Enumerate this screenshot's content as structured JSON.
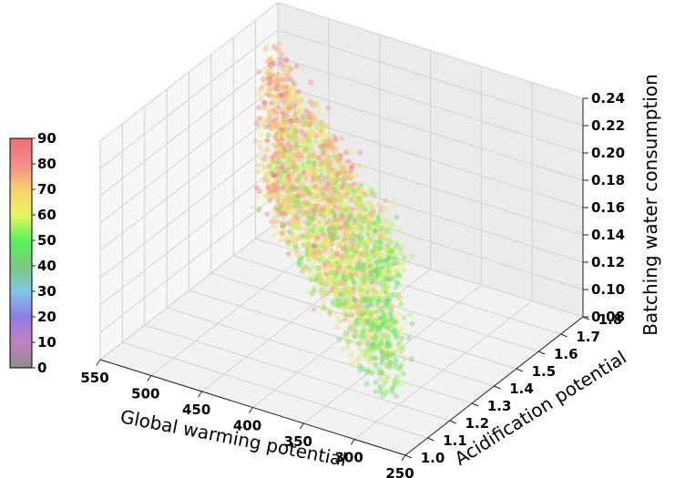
{
  "chart_data": {
    "type": "scatter",
    "projection": "3d",
    "x": {
      "label": "Global warming potential",
      "range": [
        250,
        550
      ],
      "reversed": true,
      "ticks": [
        550,
        500,
        450,
        400,
        350,
        300,
        250
      ],
      "tick_labels": [
        "550",
        "500",
        "450",
        "400",
        "350",
        "300",
        "250"
      ]
    },
    "y": {
      "label": "Acidification potential",
      "range": [
        1.0,
        1.8
      ],
      "ticks": [
        1.0,
        1.1,
        1.2,
        1.3,
        1.4,
        1.5,
        1.6,
        1.7,
        1.8
      ],
      "tick_labels": [
        "1.0",
        "1.1",
        "1.2",
        "1.3",
        "1.4",
        "1.5",
        "1.6",
        "1.7",
        "1.8"
      ]
    },
    "z": {
      "label": "Batching water consumption",
      "range": [
        0.08,
        0.24
      ],
      "ticks": [
        0.08,
        0.1,
        0.12,
        0.14,
        0.16,
        0.18,
        0.2,
        0.22,
        0.24
      ],
      "tick_labels": [
        "0.08",
        "0.10",
        "0.12",
        "0.14",
        "0.16",
        "0.18",
        "0.20",
        "0.22",
        "0.24"
      ]
    },
    "colorbar": {
      "range": [
        0,
        90
      ],
      "ticks": [
        0,
        10,
        20,
        30,
        40,
        50,
        60,
        70,
        80,
        90
      ],
      "tick_labels": [
        "0",
        "10",
        "20",
        "30",
        "40",
        "50",
        "60",
        "70",
        "80",
        "90"
      ],
      "placement": "left"
    },
    "colorscale": [
      {
        "v": 0,
        "color": "#8c8c8c"
      },
      {
        "v": 10,
        "color": "#c27fc2"
      },
      {
        "v": 20,
        "color": "#8f7ae8"
      },
      {
        "v": 30,
        "color": "#7fc8e8"
      },
      {
        "v": 40,
        "color": "#7cc87c"
      },
      {
        "v": 50,
        "color": "#55f555"
      },
      {
        "v": 60,
        "color": "#e8f560"
      },
      {
        "v": 70,
        "color": "#f9d06a"
      },
      {
        "v": 80,
        "color": "#f48a8a"
      },
      {
        "v": 90,
        "color": "#f07070"
      }
    ],
    "point_cloud": {
      "count": 2400,
      "gwp_range": [
        270,
        545
      ],
      "ap_fn": "1.05 + 0.00245*(gwp-270) ± 0.05",
      "water_range": [
        0.09,
        0.235
      ],
      "color_value_range": [
        40,
        90
      ],
      "marker_alpha": 0.4
    },
    "grid": true
  }
}
